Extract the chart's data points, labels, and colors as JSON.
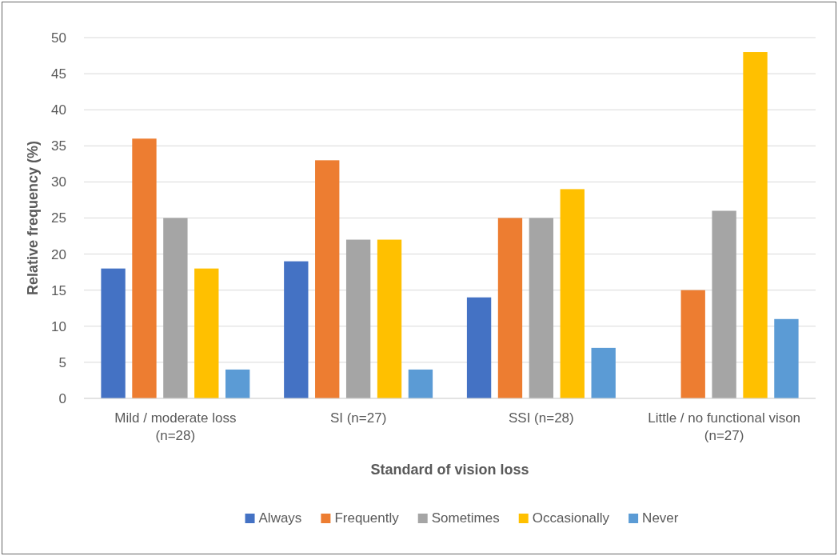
{
  "chart_data": {
    "type": "bar",
    "xlabel": "Standard of vision loss",
    "ylabel": "Relative frequency (%)",
    "categories": [
      "Mild / moderate loss\n(n=28)",
      "SI (n=27)",
      "SSI (n=28)",
      "Little / no functional vison\n(n=27)"
    ],
    "series": [
      {
        "name": "Always",
        "color": "#4472c4",
        "values": [
          18,
          19,
          14,
          0
        ]
      },
      {
        "name": "Frequently",
        "color": "#ed7d31",
        "values": [
          36,
          33,
          25,
          15
        ]
      },
      {
        "name": "Sometimes",
        "color": "#a5a5a5",
        "values": [
          25,
          22,
          25,
          26
        ]
      },
      {
        "name": "Occasionally",
        "color": "#ffc000",
        "values": [
          18,
          22,
          29,
          48
        ]
      },
      {
        "name": "Never",
        "color": "#5b9bd5",
        "values": [
          4,
          4,
          7,
          11
        ]
      }
    ],
    "ylim": [
      0,
      50
    ],
    "yticks": [
      0,
      5,
      10,
      15,
      20,
      25,
      30,
      35,
      40,
      45,
      50
    ],
    "grid": "y",
    "legend": "bottom"
  }
}
